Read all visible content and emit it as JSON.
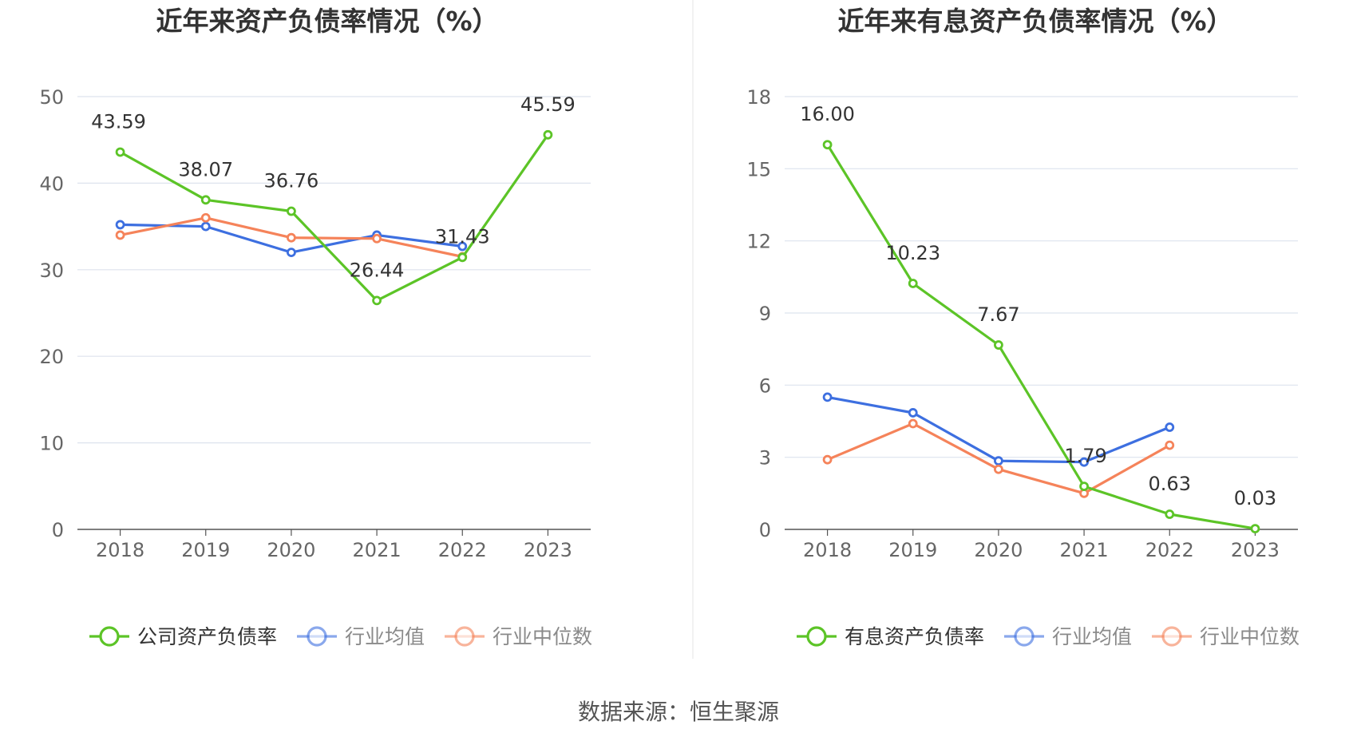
{
  "source": "数据来源：恒生聚源",
  "colors": {
    "company": "#5cc427",
    "average": "#3d6fe0",
    "median": "#f5835a",
    "grid": "#dde3ee",
    "axis": "#555555",
    "tick": "#666666",
    "title": "#333333"
  },
  "chart_data": [
    {
      "type": "line",
      "title": "近年来资产负债率情况（%）",
      "x": [
        "2018",
        "2019",
        "2020",
        "2021",
        "2022",
        "2023"
      ],
      "ylim": [
        0,
        50
      ],
      "yticks": [
        0,
        10,
        20,
        30,
        40,
        50
      ],
      "grid": true,
      "legend_position": "bottom",
      "series": [
        {
          "name": "公司资产负债率",
          "values": [
            43.59,
            38.07,
            36.76,
            26.44,
            31.43,
            45.59
          ],
          "labels": [
            "43.59",
            "38.07",
            "36.76",
            "26.44",
            "31.43",
            "45.59"
          ],
          "color": "#5cc427"
        },
        {
          "name": "行业均值",
          "values": [
            35.2,
            35.0,
            32.0,
            34.0,
            32.7,
            null
          ],
          "color": "#3d6fe0"
        },
        {
          "name": "行业中位数",
          "values": [
            34.0,
            36.0,
            33.7,
            33.6,
            31.5,
            null
          ],
          "color": "#f5835a"
        }
      ]
    },
    {
      "type": "line",
      "title": "近年来有息资产负债率情况（%）",
      "x": [
        "2018",
        "2019",
        "2020",
        "2021",
        "2022",
        "2023"
      ],
      "ylim": [
        0,
        18
      ],
      "yticks": [
        0,
        3,
        6,
        9,
        12,
        15,
        18
      ],
      "grid": true,
      "legend_position": "bottom",
      "series": [
        {
          "name": "有息资产负债率",
          "values": [
            16.0,
            10.23,
            7.67,
            1.79,
            0.63,
            0.03
          ],
          "labels": [
            "16.00",
            "10.23",
            "7.67",
            "1.79",
            "0.63",
            "0.03"
          ],
          "color": "#5cc427"
        },
        {
          "name": "行业均值",
          "values": [
            5.5,
            4.85,
            2.85,
            2.8,
            4.25,
            null
          ],
          "color": "#3d6fe0"
        },
        {
          "name": "行业中位数",
          "values": [
            2.9,
            4.4,
            2.5,
            1.5,
            3.5,
            null
          ],
          "color": "#f5835a"
        }
      ]
    }
  ]
}
